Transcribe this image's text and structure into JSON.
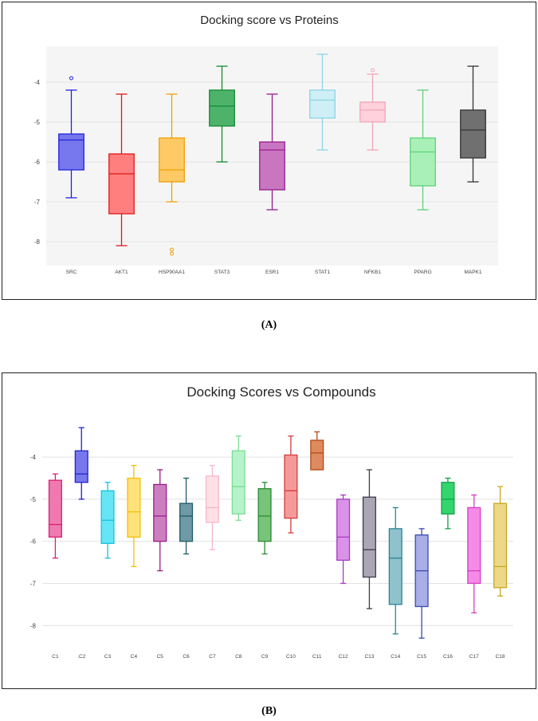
{
  "captions": {
    "a": "(A)",
    "b": "(B)"
  },
  "chart_data": [
    {
      "type": "boxplot",
      "title": "Docking score vs Proteins",
      "xlabel": "",
      "ylabel": "",
      "ylim": [
        -8.6,
        -3.1
      ],
      "yticks": [
        -4,
        -5,
        -6,
        -7,
        -8
      ],
      "ytick_labels": [
        "-4",
        "-5",
        "-6",
        "-7",
        "-8"
      ],
      "grid": true,
      "plot_background": "#f5f5f5",
      "categories": [
        "SRC",
        "AKT1",
        "HSP90AA1",
        "STAT3",
        "ESR1",
        "STAT1",
        "NFKB1",
        "PPARG",
        "MAPK1"
      ],
      "boxes": [
        {
          "name": "SRC",
          "whisker_low": -6.9,
          "q1": -6.2,
          "median": -5.45,
          "q3": -5.3,
          "whisker_high": -4.2,
          "outliers": [
            -3.9
          ],
          "fill": "#7777ee",
          "stroke": "#2222dd"
        },
        {
          "name": "AKT1",
          "whisker_low": -8.1,
          "q1": -7.3,
          "median": -6.3,
          "q3": -5.8,
          "whisker_high": -4.3,
          "outliers": [],
          "fill": "#ff7f7f",
          "stroke": "#e01818"
        },
        {
          "name": "HSP90AA1",
          "whisker_low": -7.0,
          "q1": -6.5,
          "median": -6.2,
          "q3": -5.4,
          "whisker_high": -4.3,
          "outliers": [
            -8.2,
            -8.3
          ],
          "fill": "#ffc966",
          "stroke": "#f0a000"
        },
        {
          "name": "STAT3",
          "whisker_low": -6.0,
          "q1": -5.1,
          "median": -4.6,
          "q3": -4.2,
          "whisker_high": -3.6,
          "outliers": [],
          "fill": "#4db36b",
          "stroke": "#138a2e"
        },
        {
          "name": "ESR1",
          "whisker_low": -7.2,
          "q1": -6.7,
          "median": -5.7,
          "q3": -5.5,
          "whisker_high": -4.3,
          "outliers": [],
          "fill": "#c876c0",
          "stroke": "#9b1d8f"
        },
        {
          "name": "STAT1",
          "whisker_low": -5.7,
          "q1": -4.9,
          "median": -4.45,
          "q3": -4.2,
          "whisker_high": -3.3,
          "outliers": [],
          "fill": "#cdeff5",
          "stroke": "#8fd3e3"
        },
        {
          "name": "NFKB1",
          "whisker_low": -5.7,
          "q1": -5.0,
          "median": -4.7,
          "q3": -4.5,
          "whisker_high": -3.8,
          "outliers": [
            -3.7
          ],
          "fill": "#ffd1dc",
          "stroke": "#f2a6b8"
        },
        {
          "name": "PPARG",
          "whisker_low": -7.2,
          "q1": -6.6,
          "median": -5.75,
          "q3": -5.4,
          "whisker_high": -4.2,
          "outliers": [],
          "fill": "#a8f0b8",
          "stroke": "#5fd37a"
        },
        {
          "name": "MAPK1",
          "whisker_low": -6.5,
          "q1": -5.9,
          "median": -5.2,
          "q3": -4.7,
          "whisker_high": -3.6,
          "outliers": [],
          "fill": "#707070",
          "stroke": "#333333"
        }
      ]
    },
    {
      "type": "boxplot",
      "title": "Docking Scores vs Compounds",
      "xlabel": "",
      "ylabel": "",
      "ylim": [
        -8.45,
        -3.05
      ],
      "yticks": [
        -4,
        -5,
        -6,
        -7,
        -8
      ],
      "ytick_labels": [
        "-4",
        "-5",
        "-6",
        "-7",
        "-8"
      ],
      "grid": true,
      "plot_background": "#ffffff",
      "categories": [
        "C1",
        ".C2",
        "C3",
        "C4",
        "C5",
        "C6",
        "C7",
        "C8",
        "C9",
        "C10",
        "C11",
        "C12",
        "C13",
        "C14",
        "C15",
        "C16",
        "C17",
        "C18"
      ],
      "boxes": [
        {
          "name": "C1",
          "whisker_low": -6.4,
          "q1": -5.9,
          "median": -5.6,
          "q3": -4.55,
          "whisker_high": -4.4,
          "fill": "#f07ab0",
          "stroke": "#d8206e"
        },
        {
          "name": ".C2",
          "whisker_low": -5.0,
          "q1": -4.6,
          "median": -4.4,
          "q3": -3.85,
          "whisker_high": -3.3,
          "fill": "#7777ee",
          "stroke": "#2222cc"
        },
        {
          "name": "C3",
          "whisker_low": -6.4,
          "q1": -6.05,
          "median": -5.5,
          "q3": -4.8,
          "whisker_high": -4.6,
          "fill": "#66e5f5",
          "stroke": "#12c3e0"
        },
        {
          "name": "C4",
          "whisker_low": -6.6,
          "q1": -5.9,
          "median": -5.3,
          "q3": -4.5,
          "whisker_high": -4.2,
          "fill": "#ffe27a",
          "stroke": "#f5c000"
        },
        {
          "name": "C5",
          "whisker_low": -6.7,
          "q1": -6.0,
          "median": -5.4,
          "q3": -4.65,
          "whisker_high": -4.3,
          "fill": "#cc7fc0",
          "stroke": "#9a1a88"
        },
        {
          "name": "C6",
          "whisker_low": -6.3,
          "q1": -6.0,
          "median": -5.4,
          "q3": -5.1,
          "whisker_high": -4.5,
          "fill": "#6e9aa5",
          "stroke": "#1f5a6b"
        },
        {
          "name": "C7",
          "whisker_low": -6.2,
          "q1": -5.55,
          "median": -5.2,
          "q3": -4.45,
          "whisker_high": -4.2,
          "fill": "#ffe0e6",
          "stroke": "#f5b8c6"
        },
        {
          "name": "C8",
          "whisker_low": -5.5,
          "q1": -5.35,
          "median": -4.7,
          "q3": -3.85,
          "whisker_high": -3.5,
          "fill": "#b6f3c8",
          "stroke": "#78dd96"
        },
        {
          "name": "C9",
          "whisker_low": -6.3,
          "q1": -6.0,
          "median": -5.4,
          "q3": -4.75,
          "whisker_high": -4.6,
          "fill": "#77c47a",
          "stroke": "#2b8a33"
        },
        {
          "name": "C10",
          "whisker_low": -5.8,
          "q1": -5.45,
          "median": -4.8,
          "q3": -3.95,
          "whisker_high": -3.5,
          "fill": "#f59a9a",
          "stroke": "#d63a3a"
        },
        {
          "name": "C11",
          "whisker_low": -4.3,
          "q1": -4.3,
          "median": -3.9,
          "q3": -3.6,
          "whisker_high": -3.4,
          "fill": "#dd8a5e",
          "stroke": "#b34a14"
        },
        {
          "name": "C12",
          "whisker_low": -7.0,
          "q1": -6.45,
          "median": -5.9,
          "q3": -5.0,
          "whisker_high": -4.9,
          "fill": "#da92e8",
          "stroke": "#a83cc0"
        },
        {
          "name": "C13",
          "whisker_low": -7.6,
          "q1": -6.85,
          "median": -6.2,
          "q3": -4.95,
          "whisker_high": -4.3,
          "fill": "#aaa6b4",
          "stroke": "#3e3a4a"
        },
        {
          "name": "C14",
          "whisker_low": -8.2,
          "q1": -7.5,
          "median": -6.4,
          "q3": -5.7,
          "whisker_high": -5.2,
          "fill": "#8fc2cc",
          "stroke": "#2a8596"
        },
        {
          "name": "C15",
          "whisker_low": -8.3,
          "q1": -7.55,
          "median": -6.7,
          "q3": -5.85,
          "whisker_high": -5.7,
          "fill": "#a7aee8",
          "stroke": "#3a4aae"
        },
        {
          "name": "C16",
          "whisker_low": -5.7,
          "q1": -5.35,
          "median": -5.0,
          "q3": -4.6,
          "whisker_high": -4.5,
          "fill": "#33d66e",
          "stroke": "#0fa045"
        },
        {
          "name": "C17",
          "whisker_low": -7.7,
          "q1": -7.0,
          "median": -6.7,
          "q3": -5.2,
          "whisker_high": -4.9,
          "fill": "#f58ae8",
          "stroke": "#d640c2"
        },
        {
          "name": "C18",
          "whisker_low": -7.3,
          "q1": -7.1,
          "median": -6.6,
          "q3": -5.1,
          "whisker_high": -4.7,
          "fill": "#ecd888",
          "stroke": "#c8a820"
        }
      ]
    }
  ]
}
